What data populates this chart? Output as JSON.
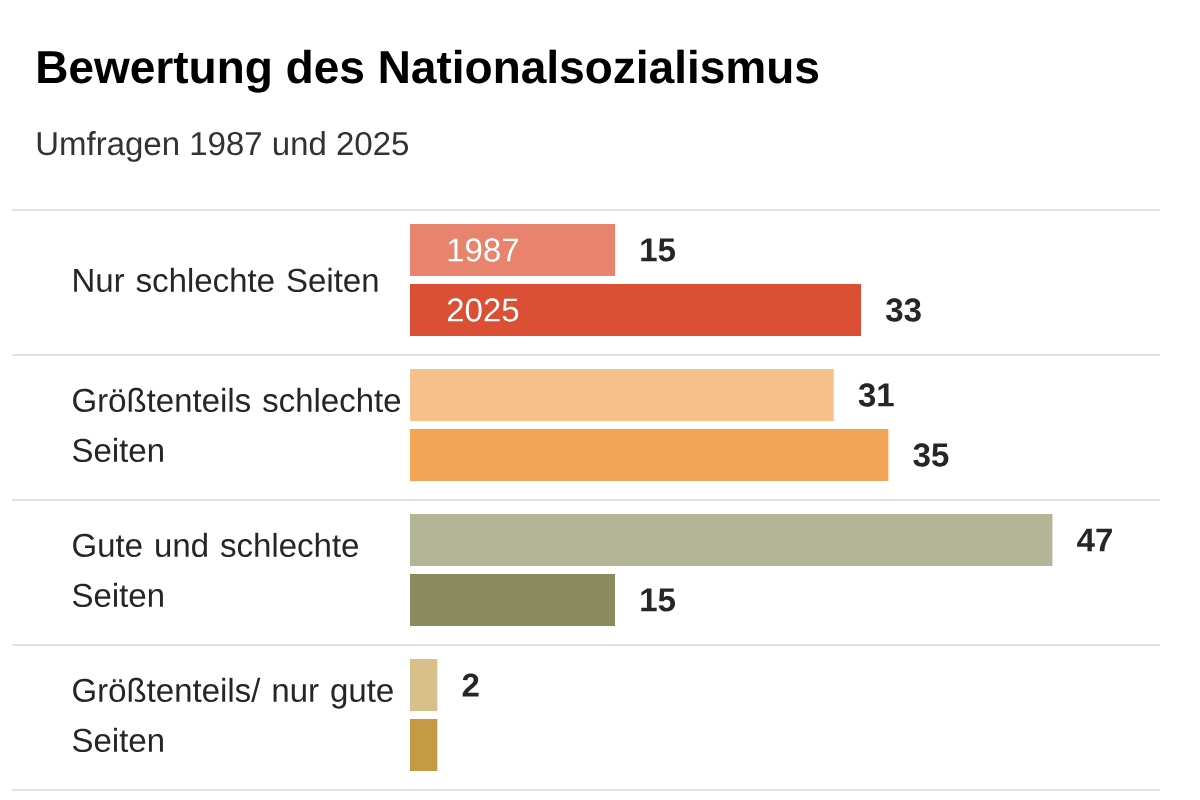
{
  "chart_data": {
    "type": "bar",
    "orientation": "horizontal",
    "title": "Bewertung des Nationalsozialismus",
    "subtitle": "Umfragen 1987 und 2025",
    "categories": [
      "Nur schlechte Seiten",
      "Größtenteils schlechte Seiten",
      "Gute und schlechte Seiten",
      "Größtenteils/ nur gute Seiten"
    ],
    "series": [
      {
        "name": "1987",
        "colors": [
          "#e8836e",
          "#f5c08a",
          "#b3b596",
          "#d9c08a"
        ],
        "values": [
          15,
          31,
          47,
          2
        ],
        "value_labels": [
          "15",
          "31",
          "47",
          "2"
        ]
      },
      {
        "name": "2025",
        "colors": [
          "#db5035",
          "#f2a554",
          "#8a8c60",
          "#c49a45"
        ],
        "values": [
          33,
          35,
          15,
          2
        ],
        "value_labels": [
          "33",
          "35",
          "15",
          null
        ]
      }
    ],
    "grid": true
  }
}
